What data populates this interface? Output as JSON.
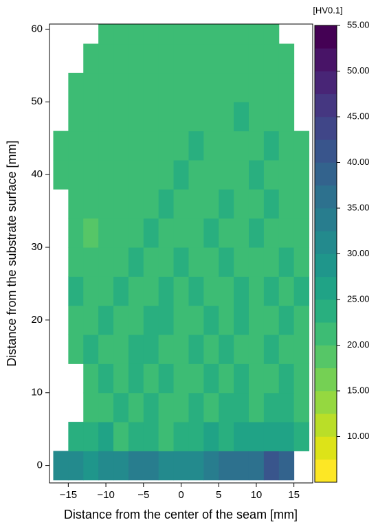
{
  "chart_data": {
    "type": "heatmap",
    "x_label": "Distance from the center of the seam [mm]",
    "y_label": "Distance from the substrate surface [mm]",
    "colorbar_label": "[HV0.1]",
    "x": [
      -16,
      -14,
      -12,
      -10,
      -8,
      -6,
      -4,
      -2,
      0,
      2,
      4,
      6,
      8,
      10,
      12,
      14,
      16
    ],
    "y": [
      0,
      4,
      8,
      12,
      16,
      20,
      24,
      28,
      32,
      36,
      40,
      44,
      48,
      52,
      56,
      60
    ],
    "z": [
      [
        32,
        30,
        28,
        30,
        32,
        34,
        33,
        31,
        30,
        32,
        34,
        36,
        35,
        37,
        40,
        38,
        null
      ],
      [
        null,
        24,
        23,
        25,
        22,
        24,
        23,
        22,
        24,
        23,
        25,
        24,
        26,
        25,
        27,
        26,
        24
      ],
      [
        null,
        null,
        22,
        21,
        23,
        22,
        24,
        21,
        22,
        23,
        22,
        24,
        23,
        22,
        24,
        23,
        22
      ],
      [
        null,
        null,
        21,
        23,
        22,
        24,
        22,
        23,
        21,
        22,
        24,
        22,
        23,
        21,
        22,
        24,
        21
      ],
      [
        null,
        22,
        23,
        21,
        22,
        24,
        23,
        22,
        21,
        23,
        22,
        24,
        21,
        22,
        23,
        22,
        21
      ],
      [
        null,
        21,
        22,
        23,
        21,
        22,
        24,
        23,
        22,
        21,
        23,
        22,
        24,
        22,
        21,
        23,
        22
      ],
      [
        null,
        23,
        22,
        21,
        24,
        22,
        21,
        23,
        22,
        24,
        22,
        21,
        23,
        22,
        24,
        21,
        23
      ],
      [
        null,
        22,
        20,
        21,
        22,
        23,
        22,
        21,
        23,
        22,
        21,
        23,
        22,
        21,
        22,
        23,
        22
      ],
      [
        null,
        21,
        19,
        21,
        22,
        21,
        23,
        22,
        21,
        22,
        23,
        21,
        22,
        23,
        21,
        22,
        22
      ],
      [
        null,
        22,
        20,
        21,
        20,
        22,
        21,
        23,
        22,
        21,
        22,
        23,
        21,
        22,
        23,
        21,
        22
      ],
      [
        22,
        21,
        22,
        20,
        21,
        22,
        21,
        22,
        23,
        21,
        22,
        21,
        22,
        23,
        22,
        21,
        22
      ],
      [
        21,
        20,
        21,
        22,
        20,
        21,
        22,
        21,
        22,
        23,
        21,
        22,
        21,
        22,
        23,
        22,
        21
      ],
      [
        null,
        21,
        22,
        21,
        22,
        21,
        20,
        22,
        21,
        22,
        21,
        22,
        23,
        21,
        22,
        21,
        null
      ],
      [
        null,
        22,
        21,
        22,
        21,
        22,
        21,
        22,
        21,
        22,
        21,
        22,
        21,
        22,
        21,
        22,
        null
      ],
      [
        null,
        null,
        22,
        21,
        22,
        21,
        22,
        21,
        22,
        21,
        22,
        21,
        22,
        21,
        22,
        21,
        null
      ],
      [
        null,
        null,
        null,
        22,
        21,
        22,
        21,
        22,
        21,
        22,
        21,
        22,
        21,
        22,
        21,
        null,
        null
      ]
    ],
    "cell_size": [
      2,
      4
    ],
    "xlim": [
      -17.5,
      17.5
    ],
    "ylim": [
      -2.4,
      60.7
    ],
    "xticks": [
      {
        "value": -15,
        "label": "−15"
      },
      {
        "value": -10,
        "label": "−10"
      },
      {
        "value": -5,
        "label": "−5"
      },
      0,
      5,
      10,
      15
    ],
    "yticks": [
      0,
      10,
      20,
      30,
      40,
      50,
      60
    ],
    "clim": [
      5,
      55
    ],
    "levels": [
      5,
      7.5,
      10,
      12.5,
      15,
      17.5,
      20,
      22.5,
      25,
      27.5,
      30,
      32.5,
      35,
      37.5,
      40,
      42.5,
      45,
      47.5,
      50,
      52.5,
      55
    ],
    "colors": [
      "#fde725",
      "#dde318",
      "#bade28",
      "#95d840",
      "#75d054",
      "#56c667",
      "#3dbc74",
      "#29af7f",
      "#20a386",
      "#1f968b",
      "#238a8d",
      "#287d8e",
      "#2d718e",
      "#33638d",
      "#39558c",
      "#404688",
      "#453781",
      "#482576",
      "#481467",
      "#440154"
    ],
    "cticks": [
      {
        "value": 10,
        "label": "10.00"
      },
      {
        "value": 15,
        "label": "15.00"
      },
      {
        "value": 20,
        "label": "20.00"
      },
      {
        "value": 25,
        "label": "25.00"
      },
      {
        "value": 30,
        "label": "30.00"
      },
      {
        "value": 35,
        "label": "35.00"
      },
      {
        "value": 40,
        "label": "40.00"
      },
      {
        "value": 45,
        "label": "45.00"
      },
      {
        "value": 50,
        "label": "50.00"
      },
      {
        "value": 55,
        "label": "55.00"
      }
    ]
  }
}
